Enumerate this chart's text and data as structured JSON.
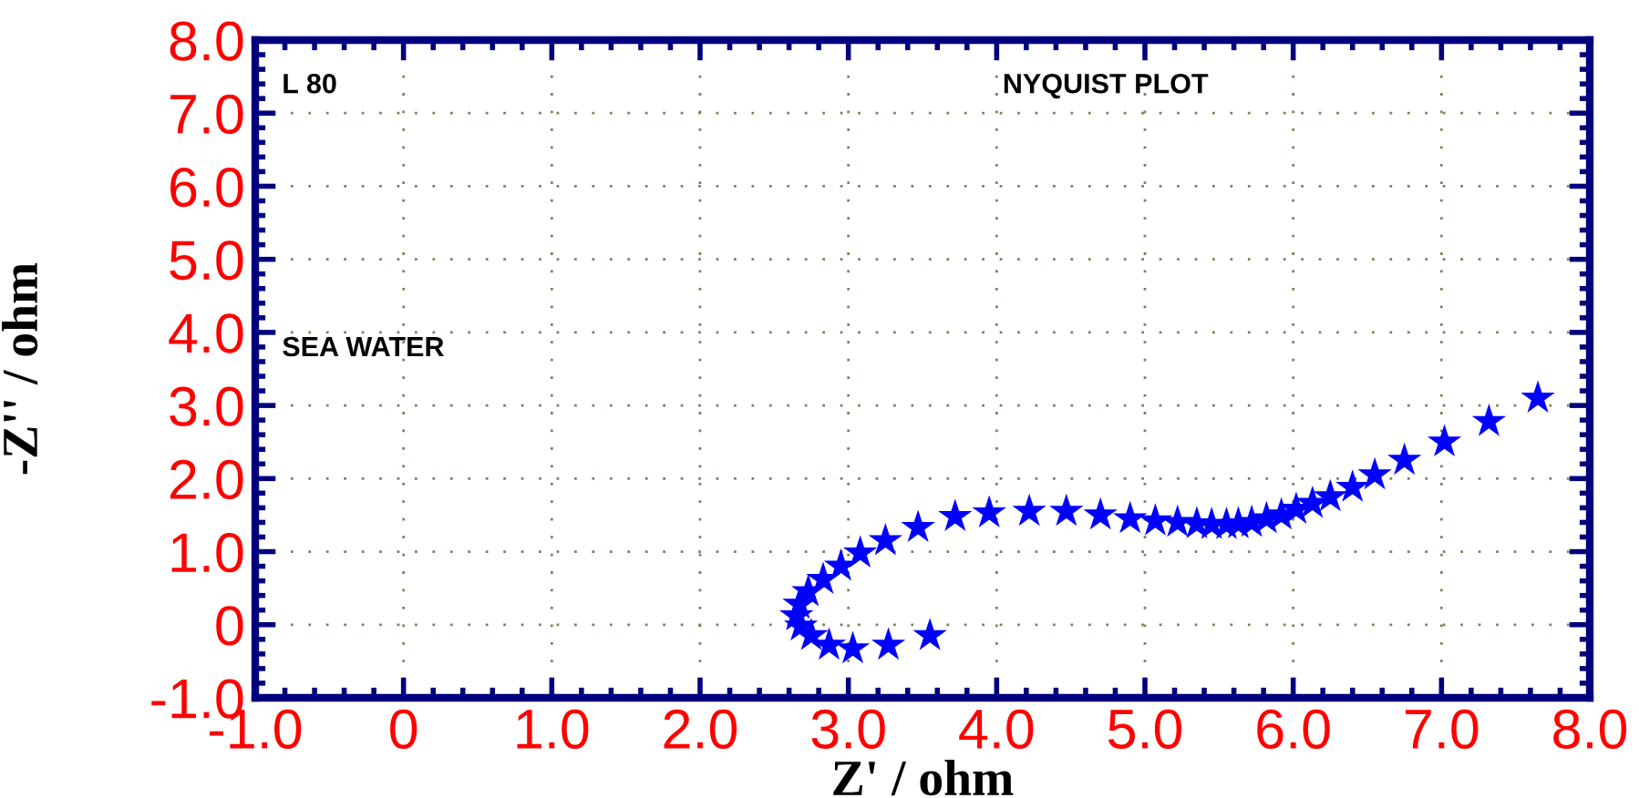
{
  "chart_data": {
    "type": "scatter",
    "xlabel": "Z' / ohm",
    "ylabel": "-Z'' / ohm",
    "annotations": [
      "L 80",
      "NYQUIST PLOT",
      "SEA WATER"
    ],
    "marker": "star",
    "grid": true,
    "xlim": [
      -1.0,
      8.0
    ],
    "ylim": [
      -1.0,
      8.0
    ],
    "xticks": [
      {
        "value": -1.0,
        "label": "-1.0"
      },
      0,
      {
        "value": 1.0,
        "label": "1.0"
      },
      {
        "value": 2.0,
        "label": "2.0"
      },
      {
        "value": 3.0,
        "label": "3.0"
      },
      {
        "value": 4.0,
        "label": "4.0"
      },
      {
        "value": 5.0,
        "label": "5.0"
      },
      {
        "value": 6.0,
        "label": "6.0"
      },
      {
        "value": 7.0,
        "label": "7.0"
      },
      {
        "value": 8.0,
        "label": "8.0"
      }
    ],
    "yticks": [
      {
        "value": -1.0,
        "label": "-1.0"
      },
      0,
      {
        "value": 1.0,
        "label": "1.0"
      },
      {
        "value": 2.0,
        "label": "2.0"
      },
      {
        "value": 3.0,
        "label": "3.0"
      },
      {
        "value": 4.0,
        "label": "4.0"
      },
      {
        "value": 5.0,
        "label": "5.0"
      },
      {
        "value": 6.0,
        "label": "6.0"
      },
      {
        "value": 7.0,
        "label": "7.0"
      },
      {
        "value": 8.0,
        "label": "8.0"
      }
    ],
    "series": [
      {
        "color": "#0000ff",
        "x": [
          3.55,
          3.27,
          3.03,
          2.87,
          2.75,
          2.68,
          2.65,
          2.67,
          2.73,
          2.83,
          2.95,
          3.08,
          3.25,
          3.47,
          3.72,
          3.95,
          4.22,
          4.47,
          4.7,
          4.9,
          5.07,
          5.22,
          5.35,
          5.45,
          5.55,
          5.63,
          5.72,
          5.82,
          5.92,
          6.02,
          6.13,
          6.25,
          6.4,
          6.55,
          6.75,
          7.02,
          7.32,
          7.65
        ],
        "values": [
          -0.15,
          -0.28,
          -0.33,
          -0.28,
          -0.15,
          -0.02,
          0.12,
          0.28,
          0.45,
          0.62,
          0.8,
          0.98,
          1.15,
          1.33,
          1.48,
          1.53,
          1.55,
          1.55,
          1.5,
          1.45,
          1.42,
          1.4,
          1.38,
          1.37,
          1.37,
          1.38,
          1.4,
          1.45,
          1.5,
          1.58,
          1.66,
          1.75,
          1.88,
          2.05,
          2.25,
          2.5,
          2.78,
          3.1
        ]
      }
    ]
  }
}
